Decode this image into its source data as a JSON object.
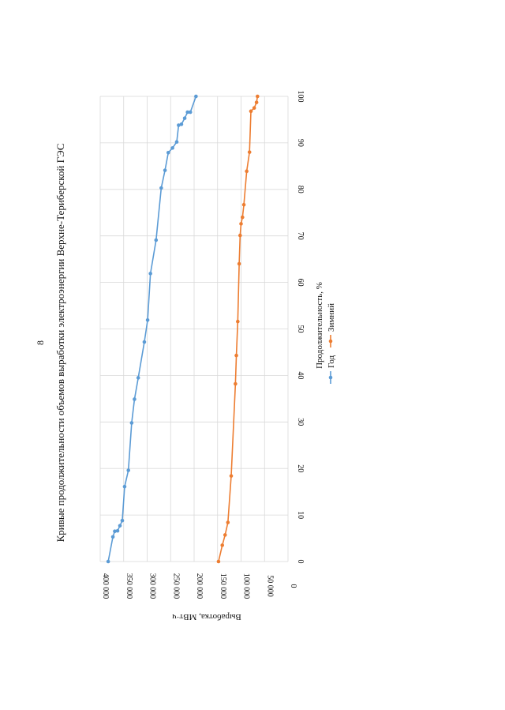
{
  "page_number": "8",
  "chart_data": {
    "type": "line",
    "title": "Кривые продолжительности объемов выработки электроэнергии Верхне-Териберской ГЭС",
    "xlabel": "Продолжительность, %",
    "ylabel": "Выработка, МВт·ч",
    "xlim": [
      0,
      100
    ],
    "ylim": [
      0,
      400000
    ],
    "x_ticks": [
      0,
      10,
      20,
      30,
      40,
      50,
      60,
      70,
      80,
      90,
      100
    ],
    "y_ticks": [
      0,
      50000,
      100000,
      150000,
      200000,
      250000,
      300000,
      350000,
      400000
    ],
    "y_tick_labels": [
      "0",
      "50 000",
      "100 000",
      "150 000",
      "200 000",
      "250 000",
      "300 000",
      "350 000",
      "400 000"
    ],
    "x_tick_labels": [
      "0",
      "10",
      "20",
      "30",
      "40",
      "50",
      "60",
      "70",
      "80",
      "90",
      "100"
    ],
    "legend_position": "bottom",
    "series": [
      {
        "name": "Год",
        "color": "#5b9bd5",
        "x": [
          0,
          5.3,
          6.5,
          6.6,
          7.7,
          8.8,
          16.1,
          19.6,
          29.8,
          34.9,
          39.5,
          47.2,
          51.9,
          61.9,
          69.1,
          80.3,
          84.1,
          87.9,
          88.9,
          90.2,
          93.8,
          94.0,
          95.3,
          96.6,
          96.6,
          100
        ],
        "y": [
          383000,
          373000,
          369000,
          363000,
          358000,
          353000,
          348000,
          340000,
          333000,
          327000,
          319000,
          306000,
          299000,
          293000,
          281000,
          270000,
          262000,
          255000,
          246000,
          237000,
          233000,
          227000,
          220000,
          214000,
          208000,
          196000
        ]
      },
      {
        "name": "Зимний",
        "color": "#ed7d31",
        "x": [
          0,
          3.5,
          5.7,
          8.4,
          18.4,
          38.2,
          44.3,
          51.6,
          64.0,
          70.1,
          72.6,
          74.0,
          76.7,
          83.9,
          88.0,
          96.8,
          97.5,
          98.7,
          100
        ],
        "y": [
          148000,
          140000,
          134000,
          128000,
          121000,
          112000,
          110000,
          107000,
          104000,
          102000,
          100000,
          97000,
          94000,
          88000,
          82000,
          79000,
          72000,
          67000,
          65000
        ]
      }
    ]
  }
}
